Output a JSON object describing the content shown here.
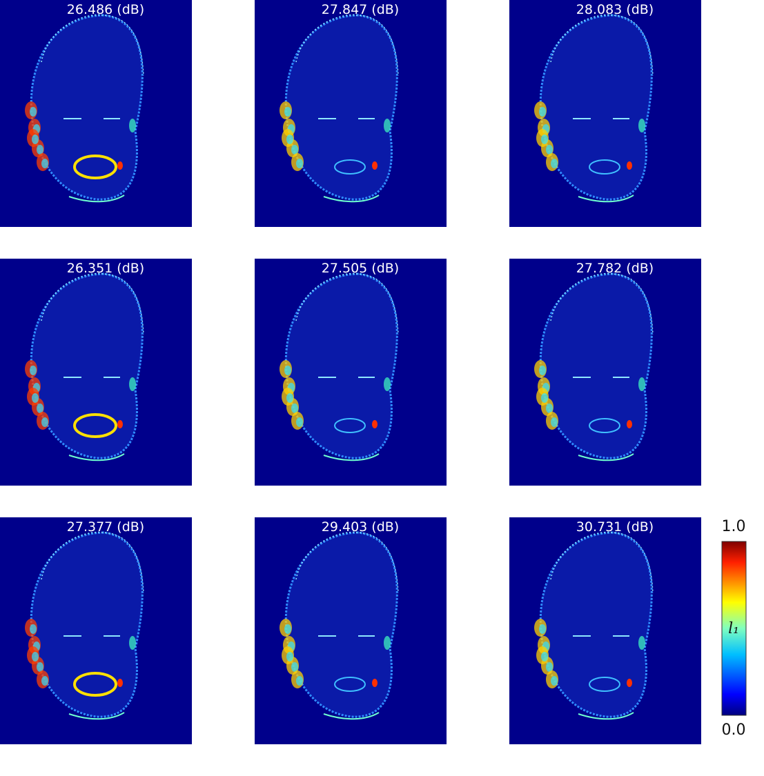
{
  "panels": [
    {
      "label": "26.486 (dB)"
    },
    {
      "label": "27.847 (dB)"
    },
    {
      "label": "28.083 (dB)"
    },
    {
      "label": "26.351 (dB)"
    },
    {
      "label": "27.505 (dB)"
    },
    {
      "label": "27.782 (dB)"
    },
    {
      "label": "27.377 (dB)"
    },
    {
      "label": "29.403 (dB)"
    },
    {
      "label": "30.731 (dB)"
    }
  ],
  "colorbar": {
    "max_label": "1.0",
    "min_label": "0.0",
    "label": "l₁"
  }
}
